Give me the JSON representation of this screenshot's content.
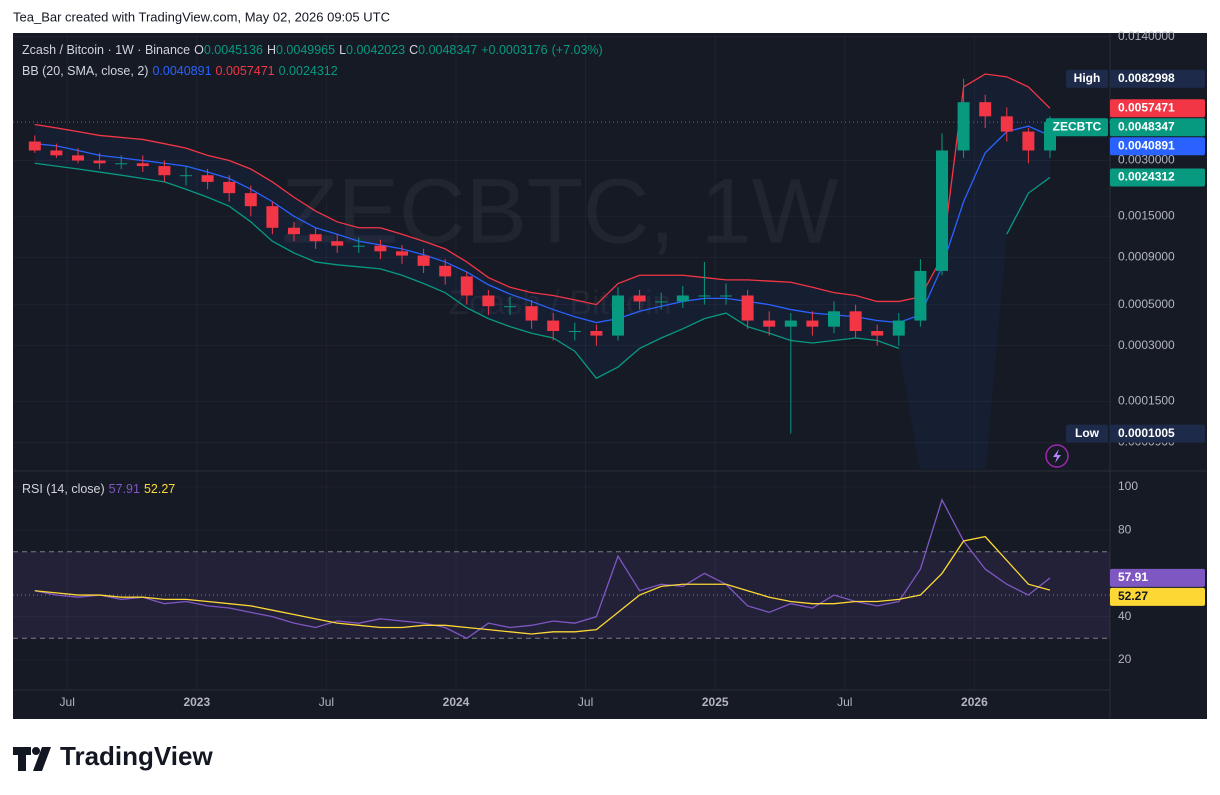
{
  "header": "Tea_Bar created with TradingView.com, May 02, 2026 09:05 UTC",
  "footer": "TradingView",
  "chart_data": {
    "type": "candlestick",
    "legend": {
      "symbol": "Zcash / Bitcoin · 1W · Binance",
      "ohlc": [
        [
          "O",
          "0.0045136"
        ],
        [
          "H",
          "0.0049965"
        ],
        [
          "L",
          "0.0042023"
        ],
        [
          "C",
          "0.0048347"
        ]
      ],
      "change": "+0.0003176",
      "change_pct": "(+7.03%)"
    },
    "indicator_title": "BB (20, SMA, close, 2)",
    "watermark": "ZECBTC, 1W",
    "watermark_sub": "Zcash / Bitcoin",
    "symbol_tag": "ZECBTC",
    "high_label": "High",
    "low_label": "Low",
    "up_color": "#089981",
    "down_color": "#f23645",
    "log_scale": true,
    "grid": true,
    "x": [
      "2022-05",
      "2022-06",
      "2022-07",
      "2022-08",
      "2022-09",
      "2022-10",
      "2022-11",
      "2022-12",
      "2023-01",
      "2023-02",
      "2023-03",
      "2023-04",
      "2023-05",
      "2023-06",
      "2023-07",
      "2023-08",
      "2023-09",
      "2023-10",
      "2023-11",
      "2023-12",
      "2024-01",
      "2024-02",
      "2024-03",
      "2024-04",
      "2024-05",
      "2024-06",
      "2024-07",
      "2024-08",
      "2024-09",
      "2024-10",
      "2024-11",
      "2024-12",
      "2025-01",
      "2025-02",
      "2025-03",
      "2025-04",
      "2025-05",
      "2025-06",
      "2025-07",
      "2025-08",
      "2025-09",
      "2025-10",
      "2025-11",
      "2025-12",
      "2026-01",
      "2026-02",
      "2026-03",
      "2026-04"
    ],
    "open": [
      0.0038,
      0.0034,
      0.0032,
      0.003,
      0.0029,
      0.0029,
      0.0028,
      0.0025,
      0.0025,
      0.0023,
      0.002,
      0.0017,
      0.0013,
      0.0012,
      0.0011,
      0.00104,
      0.00104,
      0.00097,
      0.00092,
      0.00081,
      0.00071,
      0.00056,
      0.00049,
      0.00049,
      0.00041,
      0.00036,
      0.00036,
      0.00034,
      0.00056,
      0.00052,
      0.00052,
      0.00056,
      0.00056,
      0.00056,
      0.00041,
      0.00038,
      0.00041,
      0.00038,
      0.00046,
      0.00036,
      0.00034,
      0.00041,
      0.00076,
      0.0034,
      0.0062,
      0.0052,
      0.0043,
      0.0034
    ],
    "high": [
      0.0041,
      0.0037,
      0.0035,
      0.0033,
      0.0032,
      0.0032,
      0.003,
      0.0028,
      0.0027,
      0.0025,
      0.0022,
      0.0018,
      0.0014,
      0.0013,
      0.0012,
      0.00115,
      0.00112,
      0.00105,
      0.001,
      0.00088,
      0.00075,
      0.0006,
      0.00055,
      0.00053,
      0.00045,
      0.0004,
      0.00039,
      0.00062,
      0.0006,
      0.00058,
      0.00063,
      0.00085,
      0.00065,
      0.0006,
      0.00046,
      0.00045,
      0.00046,
      0.00052,
      0.0005,
      0.00039,
      0.00045,
      0.00088,
      0.0042,
      0.0082998,
      0.0068,
      0.0058,
      0.0045,
      0.0052
    ],
    "low": [
      0.0033,
      0.0031,
      0.0029,
      0.0027,
      0.0027,
      0.0026,
      0.0023,
      0.0022,
      0.0021,
      0.0018,
      0.0015,
      0.0012,
      0.0011,
      0.001,
      0.00095,
      0.00095,
      0.00088,
      0.00083,
      0.00074,
      0.00064,
      0.0005,
      0.00044,
      0.00044,
      0.00037,
      0.00032,
      0.00032,
      0.0003,
      0.00032,
      0.00047,
      0.00047,
      0.00048,
      0.0005,
      0.0005,
      0.00037,
      0.00034,
      0.0001005,
      0.00034,
      0.00035,
      0.00033,
      0.0003,
      0.0003,
      0.00038,
      0.00072,
      0.0031,
      0.0045,
      0.0038,
      0.0029,
      0.0031
    ],
    "close": [
      0.0034,
      0.0032,
      0.003,
      0.0029,
      0.0029,
      0.0028,
      0.0025,
      0.0025,
      0.0023,
      0.002,
      0.0017,
      0.0013,
      0.0012,
      0.0011,
      0.00104,
      0.00104,
      0.00097,
      0.00092,
      0.00081,
      0.00071,
      0.00056,
      0.00049,
      0.00049,
      0.00041,
      0.00036,
      0.00036,
      0.00034,
      0.00056,
      0.00052,
      0.00052,
      0.00056,
      0.00056,
      0.00056,
      0.00041,
      0.00038,
      0.00041,
      0.00038,
      0.00046,
      0.00036,
      0.00034,
      0.00041,
      0.00076,
      0.0034,
      0.0062,
      0.0052,
      0.0043,
      0.0034,
      0.0048347
    ],
    "series": [
      {
        "color": "#2962ff",
        "values": [
          0.0037,
          0.0036,
          0.0034,
          0.0032,
          0.0031,
          0.003,
          0.0029,
          0.0028,
          0.0026,
          0.0024,
          0.0021,
          0.0018,
          0.0015,
          0.0013,
          0.0012,
          0.0011,
          0.00105,
          0.001,
          0.00093,
          0.00085,
          0.00075,
          0.00064,
          0.00057,
          0.00052,
          0.00047,
          0.00043,
          0.0004,
          0.00042,
          0.00046,
          0.00049,
          0.00052,
          0.00054,
          0.00054,
          0.00052,
          0.0005,
          0.00047,
          0.00045,
          0.00044,
          0.00043,
          0.00041,
          0.0004,
          0.00044,
          0.0008,
          0.0018,
          0.0033,
          0.0043,
          0.0046,
          0.0040891
        ]
      },
      {
        "color": "#f23645",
        "values": [
          0.0047,
          0.0045,
          0.0043,
          0.0041,
          0.004,
          0.0039,
          0.0037,
          0.0035,
          0.0032,
          0.003,
          0.0027,
          0.0023,
          0.0019,
          0.0016,
          0.0014,
          0.0013,
          0.0013,
          0.0012,
          0.0011,
          0.001,
          0.00085,
          0.0007,
          0.00062,
          0.00058,
          0.00056,
          0.00053,
          0.0005,
          0.00065,
          0.00072,
          0.00072,
          0.00072,
          0.0007,
          0.00068,
          0.00068,
          0.00067,
          0.00066,
          0.00062,
          0.00058,
          0.00056,
          0.00052,
          0.00052,
          0.00055,
          0.0009,
          0.0075,
          0.0088,
          0.0085,
          0.0075,
          0.0057471
        ]
      },
      {
        "color": "#089981",
        "values": [
          0.0029,
          0.0028,
          0.0027,
          0.0026,
          0.0025,
          0.0024,
          0.0023,
          0.0021,
          0.0019,
          0.0017,
          0.0014,
          0.0011,
          0.00095,
          0.00085,
          0.00082,
          0.0008,
          0.00078,
          0.00072,
          0.00065,
          0.00058,
          0.00048,
          0.00042,
          0.00038,
          0.00035,
          0.00033,
          0.00028,
          0.0002,
          0.00023,
          0.00029,
          0.00033,
          0.00037,
          0.00042,
          0.00045,
          0.00038,
          0.00035,
          0.00032,
          0.00031,
          0.00032,
          0.00033,
          0.00032,
          0.00029,
          null,
          null,
          null,
          null,
          0.0012,
          0.002,
          0.0024312
        ]
      }
    ],
    "ylim": [
      6.55e-05,
      0.0143
    ],
    "yticks": [
      {
        "value": 0.014,
        "label": "0.0140000"
      },
      {
        "value": 0.003,
        "label": "0.0030000"
      },
      {
        "value": 0.0015,
        "label": "0.0015000"
      },
      {
        "value": 0.0009,
        "label": "0.0009000"
      },
      {
        "value": 0.0005,
        "label": "0.0005000"
      },
      {
        "value": 0.0003,
        "label": "0.0003000"
      },
      {
        "value": 0.00015,
        "label": "0.0001500"
      },
      {
        "value": 9e-05,
        "label": "0.0000900"
      }
    ],
    "xticks": [
      {
        "value": "2022-07",
        "label": "Jul"
      },
      {
        "value": "2023-01",
        "label": "2023"
      },
      {
        "value": "2023-07",
        "label": "Jul"
      },
      {
        "value": "2024-01",
        "label": "2024"
      },
      {
        "value": "2024-07",
        "label": "Jul"
      },
      {
        "value": "2025-01",
        "label": "2025"
      },
      {
        "value": "2025-07",
        "label": "Jul"
      },
      {
        "value": "2026-01",
        "label": "2026"
      }
    ],
    "indicator": {
      "type": "line",
      "title": "RSI (14, close)",
      "ylim": [
        6.1,
        105.5
      ],
      "yticks": [
        20,
        40,
        80,
        100
      ],
      "levels": [
        30,
        50,
        70
      ],
      "band_color": "#7e57c2",
      "series": [
        {
          "color": "#7e57c2",
          "values": [
            52,
            50,
            49,
            50,
            48,
            49,
            46,
            47,
            45,
            44,
            42,
            40,
            37,
            35,
            38,
            37,
            39,
            38,
            37,
            35,
            30,
            37,
            35,
            36,
            38,
            37,
            40,
            68,
            52,
            55,
            54,
            60,
            55,
            45,
            42,
            46,
            44,
            50,
            47,
            45,
            47,
            62,
            94,
            75,
            62,
            55,
            50,
            57.91
          ]
        },
        {
          "color": "#fdd835",
          "values": [
            52,
            51,
            50,
            50,
            49,
            49,
            48,
            48,
            47,
            46,
            45,
            43,
            41,
            39,
            37,
            36,
            35,
            35,
            36,
            36,
            35,
            34,
            33,
            32,
            33,
            33,
            34,
            42,
            50,
            54,
            55,
            55,
            55,
            52,
            49,
            47,
            46,
            46,
            47,
            47,
            48,
            50,
            60,
            75,
            77,
            66,
            55,
            52.27
          ]
        }
      ]
    }
  }
}
